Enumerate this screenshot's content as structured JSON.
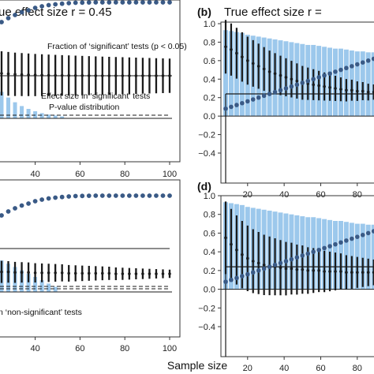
{
  "figure": {
    "title_left": "ue effect size r = 0.45",
    "title_right": "True effect size r =",
    "xlabel": "Sample size",
    "colors": {
      "bar": "#9cc8ec",
      "dot": "#3a5a86",
      "line": "#1a1a1a",
      "axis": "#333333"
    }
  },
  "panels": {
    "a": {
      "letter": "",
      "xticks": [
        "40",
        "60",
        "80",
        "100"
      ],
      "yticks": [],
      "annotations": [
        "Fraction of ‘significant’ tests (p < 0.05)",
        "Effect size in ‘significant’ tests",
        "P-value distribution"
      ]
    },
    "b": {
      "letter": "(b)",
      "xticks": [
        "20",
        "40",
        "60",
        "80"
      ],
      "yticks": [
        "1.0",
        "0.8",
        "0.6",
        "0.4",
        "0.2",
        "0.0",
        "−0.2",
        "−0.4"
      ]
    },
    "c": {
      "letter": "",
      "xticks": [
        "40",
        "60",
        "80",
        "100"
      ],
      "yticks": [],
      "annotations": [
        "n ‘non-significant’ tests"
      ]
    },
    "d": {
      "letter": "(d)",
      "xticks": [
        "20",
        "40",
        "60",
        "80"
      ],
      "yticks": [
        "1.0",
        "0.8",
        "0.6",
        "0.4",
        "0.2",
        "0.0",
        "−0.2",
        "−0.4"
      ]
    }
  },
  "chart_data": [
    {
      "panel": "a",
      "type": "line",
      "title": "ue effect size r = 0.45",
      "xlabel": "Sample size",
      "xlim": [
        25,
        103
      ],
      "series": [
        {
          "x": [
            25,
            28,
            31,
            34,
            37,
            40,
            43,
            46,
            49,
            52,
            55,
            58,
            61,
            64,
            67,
            70,
            73,
            76,
            79,
            82,
            85,
            88,
            91,
            94,
            97,
            100
          ],
          "y": [
            0.75,
            0.8,
            0.84,
            0.875,
            0.9,
            0.93,
            0.95,
            0.965,
            0.975,
            0.983,
            0.99,
            0.995,
            0.997,
            0.999,
            1,
            1,
            1,
            1,
            1,
            1,
            1,
            1,
            1,
            1,
            1,
            1
          ]
        },
        {
          "x": [
            25,
            28,
            31,
            34,
            37,
            40,
            43,
            46,
            49,
            52,
            55,
            58,
            61,
            64,
            67,
            70,
            73,
            76,
            79,
            82,
            85,
            88,
            91,
            94,
            97,
            100
          ],
          "y": [
            0.5,
            0.49,
            0.48,
            0.475,
            0.47,
            0.465,
            0.462,
            0.46,
            0.458,
            0.456,
            0.455,
            0.454,
            0.453,
            0.452,
            0.451,
            0.45,
            0.45,
            0.45,
            0.45,
            0.45,
            0.45,
            0.45,
            0.45,
            0.45,
            0.45,
            0.45
          ]
        },
        {
          "x": [
            25,
            28,
            31,
            34,
            37,
            40,
            43,
            46,
            49,
            52,
            55,
            58,
            61,
            64,
            67,
            70,
            73,
            76,
            79,
            82,
            85,
            88,
            91,
            94,
            97,
            100
          ],
          "y": [
            0.28,
            0.22,
            0.17,
            0.13,
            0.1,
            0.075,
            0.055,
            0.04,
            0.03,
            0.02,
            0.015,
            0.01,
            0.008,
            0.006,
            0.005,
            0.004,
            0.003,
            0.003,
            0.003,
            0.003,
            0.003,
            0.003,
            0.003,
            0.003,
            0.003,
            0.003
          ]
        }
      ]
    },
    {
      "panel": "b",
      "type": "bar",
      "title": "True effect size r =",
      "xlabel": "Sample size",
      "ylim": [
        -0.5,
        1.05
      ],
      "x": [
        8,
        11,
        14,
        17,
        20,
        23,
        26,
        29,
        32,
        35,
        38,
        41,
        44,
        47,
        50,
        53,
        56,
        59,
        62,
        65,
        68,
        71,
        74,
        77,
        80,
        83,
        86,
        89
      ],
      "series": [
        {
          "values": [
            0.93,
            0.92,
            0.91,
            0.9,
            0.88,
            0.87,
            0.86,
            0.85,
            0.84,
            0.83,
            0.82,
            0.81,
            0.8,
            0.79,
            0.78,
            0.77,
            0.77,
            0.76,
            0.75,
            0.74,
            0.73,
            0.73,
            0.72,
            0.71,
            0.7,
            0.7,
            0.69,
            0.69
          ]
        },
        {
          "values": [
            0.08,
            0.1,
            0.12,
            0.14,
            0.16,
            0.18,
            0.2,
            0.22,
            0.24,
            0.26,
            0.28,
            0.3,
            0.32,
            0.34,
            0.36,
            0.38,
            0.4,
            0.42,
            0.44,
            0.46,
            0.48,
            0.5,
            0.52,
            0.54,
            0.56,
            0.58,
            0.6,
            0.62
          ]
        },
        {
          "values": [
            0.75,
            0.72,
            0.68,
            0.64,
            0.6,
            0.57,
            0.54,
            0.51,
            0.48,
            0.46,
            0.44,
            0.42,
            0.4,
            0.38,
            0.36,
            0.35,
            0.34,
            0.33,
            0.32,
            0.31,
            0.3,
            0.29,
            0.28,
            0.28,
            0.27,
            0.27,
            0.26,
            0.26
          ]
        }
      ],
      "hline": 0.24
    },
    {
      "panel": "c",
      "type": "line",
      "xlabel": "Sample size",
      "xlim": [
        25,
        103
      ],
      "series": [
        {
          "x": [
            25,
            28,
            31,
            34,
            37,
            40,
            43,
            46,
            49,
            52,
            55,
            58,
            61,
            64,
            67,
            70,
            73,
            76,
            79,
            82,
            85,
            88,
            91,
            94,
            97,
            100
          ],
          "y": [
            0.75,
            0.8,
            0.84,
            0.875,
            0.9,
            0.93,
            0.95,
            0.965,
            0.975,
            0.983,
            0.99,
            0.995,
            0.997,
            0.999,
            1,
            1,
            1,
            1,
            1,
            1,
            1,
            1,
            1,
            1,
            1,
            1
          ]
        },
        {
          "x": [
            25,
            28,
            31,
            34,
            37,
            40,
            43,
            46,
            49,
            52,
            55,
            58,
            61,
            64,
            67,
            70,
            73,
            76,
            79,
            82,
            85,
            88,
            91,
            94,
            97,
            100
          ],
          "y": [
            0.2,
            0.2,
            0.19,
            0.19,
            0.19,
            0.18,
            0.18,
            0.18,
            0.18,
            0.18,
            0.17,
            0.17,
            0.17,
            0.17,
            0.17,
            0.17,
            0.17,
            0.16,
            0.16,
            0.16,
            0.16,
            0.16,
            0.16,
            0.16,
            0.16,
            0.16
          ]
        }
      ],
      "hline": 0.45
    },
    {
      "panel": "d",
      "type": "bar",
      "xlabel": "Sample size",
      "ylim": [
        -0.5,
        1.05
      ],
      "x": [
        8,
        11,
        14,
        17,
        20,
        23,
        26,
        29,
        32,
        35,
        38,
        41,
        44,
        47,
        50,
        53,
        56,
        59,
        62,
        65,
        68,
        71,
        74,
        77,
        80,
        83,
        86,
        89
      ],
      "series": [
        {
          "values": [
            0.93,
            0.92,
            0.91,
            0.9,
            0.88,
            0.87,
            0.86,
            0.85,
            0.84,
            0.83,
            0.82,
            0.81,
            0.8,
            0.79,
            0.78,
            0.77,
            0.77,
            0.76,
            0.75,
            0.74,
            0.73,
            0.73,
            0.72,
            0.71,
            0.7,
            0.7,
            0.69,
            0.69
          ]
        },
        {
          "values": [
            0.08,
            0.1,
            0.12,
            0.14,
            0.16,
            0.18,
            0.2,
            0.22,
            0.24,
            0.26,
            0.28,
            0.3,
            0.32,
            0.34,
            0.36,
            0.38,
            0.4,
            0.42,
            0.44,
            0.46,
            0.48,
            0.5,
            0.52,
            0.54,
            0.56,
            0.58,
            0.6,
            0.62
          ]
        },
        {
          "values": [
            0.55,
            0.48,
            0.42,
            0.37,
            0.33,
            0.3,
            0.28,
            0.26,
            0.25,
            0.24,
            0.23,
            0.22,
            0.22,
            0.21,
            0.21,
            0.2,
            0.2,
            0.2,
            0.19,
            0.19,
            0.19,
            0.19,
            0.18,
            0.18,
            0.18,
            0.18,
            0.18,
            0.18
          ]
        }
      ],
      "hline": 0.24
    }
  ]
}
